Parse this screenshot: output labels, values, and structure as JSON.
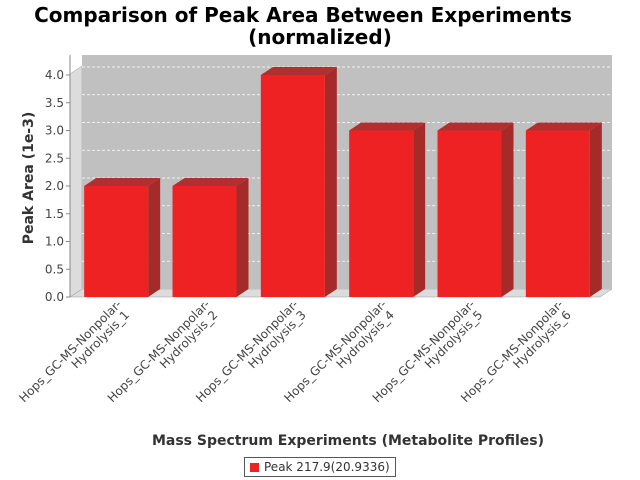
{
  "chart_data": {
    "type": "bar",
    "title": "Comparison of Peak Area Between Experiments",
    "subtitle": "(normalized)",
    "xlabel": "Mass Spectrum Experiments (Metabolite Profiles)",
    "ylabel": "Peak Area (1e-3)",
    "categories": [
      [
        "Hops_GC-MS-Nonpolar-",
        "Hydrolysis_1"
      ],
      [
        "Hops_GC-MS-Nonpolar-",
        "Hydrolysis_2"
      ],
      [
        "Hops_GC-MS-Nonpolar-",
        "Hydrolysis_3"
      ],
      [
        "Hops_GC-MS-Nonpolar-",
        "Hydrolysis_4"
      ],
      [
        "Hops_GC-MS-Nonpolar-",
        "Hydrolysis_5"
      ],
      [
        "Hops_GC-MS-Nonpolar-",
        "Hydrolysis_6"
      ]
    ],
    "series": [
      {
        "name": "Peak 217.9(20.9336)",
        "values": [
          2.0,
          2.0,
          4.0,
          3.0,
          3.0,
          3.0
        ]
      }
    ],
    "ylim": [
      0,
      4.0
    ],
    "yticks": [
      "0.0",
      "0.5",
      "1.0",
      "1.5",
      "2.0",
      "2.5",
      "3.0",
      "3.5",
      "4.0"
    ],
    "grid": true,
    "legend": "bottom",
    "colors": {
      "bar_front": "#ee2222",
      "bar_top": "#b03030",
      "bar_side": "#a52a2a",
      "plot_bg": "#c0c0c0",
      "wall": "#dcdcdc"
    }
  }
}
